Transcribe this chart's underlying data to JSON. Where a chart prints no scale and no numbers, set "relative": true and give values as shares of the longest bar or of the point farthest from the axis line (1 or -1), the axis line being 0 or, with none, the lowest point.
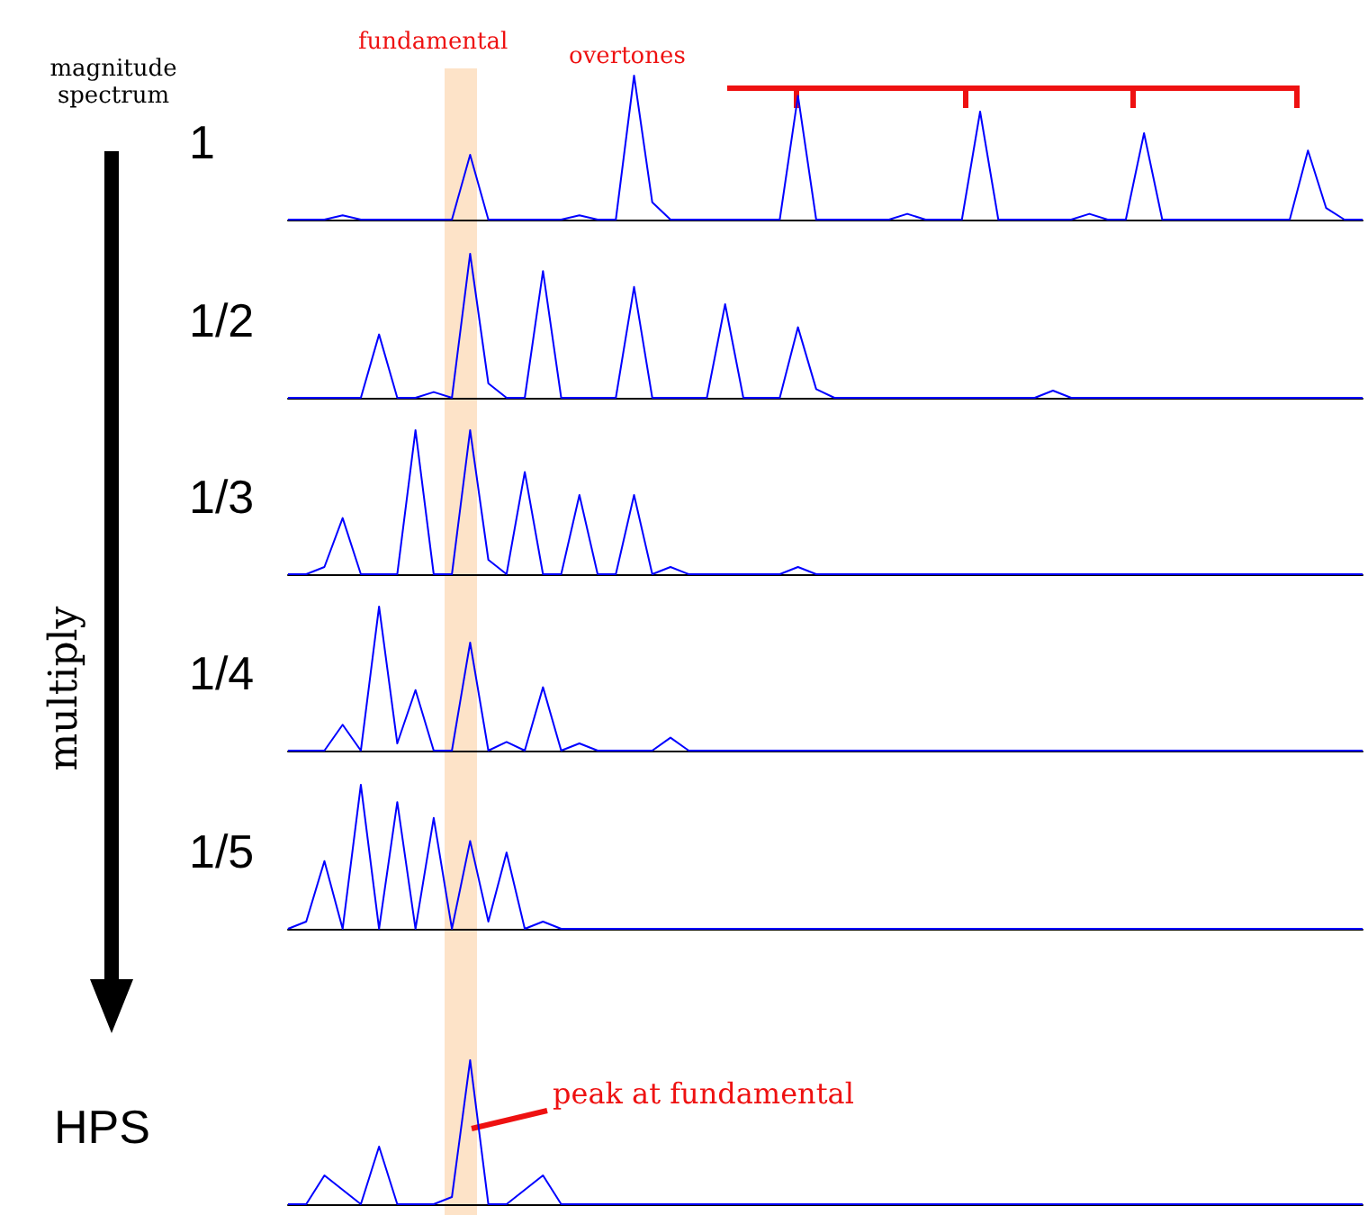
{
  "chart_data": [
    {
      "type": "line",
      "relative": true,
      "ylabel": "1",
      "color": "#0000ff",
      "annotations": [
        "magnitude spectrum",
        "multiply",
        "overtones",
        "fundamental"
      ],
      "categories": [
        null,
        null,
        null,
        null,
        null,
        null,
        null,
        null,
        null,
        null,
        null,
        null,
        null,
        null,
        null,
        null,
        null,
        null,
        null,
        null,
        null,
        null,
        null,
        null,
        null,
        null,
        null,
        null,
        null,
        null,
        null,
        null,
        null,
        null,
        null,
        null,
        null,
        null,
        null,
        null,
        null,
        null,
        null,
        null,
        null,
        null,
        null,
        null,
        null,
        null,
        null,
        null,
        null,
        null,
        null,
        null,
        null,
        null,
        null,
        null
      ],
      "values": [
        0,
        0,
        0,
        0.03,
        0,
        0,
        0,
        0,
        0,
        0,
        0.45,
        0,
        0,
        0,
        0,
        0,
        0.03,
        0,
        0,
        1,
        0.12,
        0,
        0,
        0,
        0,
        0,
        0,
        0,
        0.86,
        0,
        0,
        0,
        0,
        0,
        0.04,
        0,
        0,
        0,
        0.75,
        0,
        0,
        0,
        0,
        0,
        0.04,
        0,
        0,
        0.6,
        0,
        0,
        0,
        0,
        0,
        0,
        0,
        0,
        0.48,
        0.08,
        0,
        0
      ]
    },
    {
      "type": "line",
      "relative": true,
      "ylabel": "1/2",
      "color": "#0000ff",
      "categories": [
        null,
        null,
        null,
        null,
        null,
        null,
        null,
        null,
        null,
        null,
        null,
        null,
        null,
        null,
        null,
        null,
        null,
        null,
        null,
        null,
        null,
        null,
        null,
        null,
        null,
        null,
        null,
        null,
        null,
        null,
        null,
        null,
        null,
        null,
        null,
        null,
        null,
        null,
        null,
        null,
        null,
        null,
        null,
        null,
        null,
        null,
        null,
        null,
        null,
        null,
        null,
        null,
        null,
        null,
        null,
        null,
        null,
        null,
        null,
        null
      ],
      "values": [
        0,
        0,
        0,
        0,
        0,
        0.44,
        0,
        0,
        0.04,
        0,
        1,
        0.1,
        0,
        0,
        0.88,
        0,
        0,
        0,
        0,
        0.77,
        0,
        0,
        0,
        0,
        0.65,
        0,
        0,
        0,
        0.49,
        0.06,
        0,
        0,
        0,
        0,
        0,
        0,
        0,
        0,
        0,
        0,
        0,
        0,
        0.05,
        0,
        0,
        0,
        0,
        0,
        0,
        0,
        0,
        0,
        0,
        0,
        0,
        0,
        0,
        0,
        0,
        0
      ]
    },
    {
      "type": "line",
      "relative": true,
      "ylabel": "1/3",
      "color": "#0000ff",
      "categories": [
        null,
        null,
        null,
        null,
        null,
        null,
        null,
        null,
        null,
        null,
        null,
        null,
        null,
        null,
        null,
        null,
        null,
        null,
        null,
        null,
        null,
        null,
        null,
        null,
        null,
        null,
        null,
        null,
        null,
        null,
        null,
        null,
        null,
        null,
        null,
        null,
        null,
        null,
        null,
        null,
        null,
        null,
        null,
        null,
        null,
        null,
        null,
        null,
        null,
        null,
        null,
        null,
        null,
        null,
        null,
        null,
        null,
        null,
        null,
        null
      ],
      "values": [
        0,
        0,
        0.05,
        0.39,
        0,
        0,
        0,
        1,
        0,
        0,
        1,
        0.1,
        0,
        0.71,
        0,
        0,
        0.55,
        0,
        0,
        0.55,
        0,
        0.05,
        0,
        0,
        0,
        0,
        0,
        0,
        0.05,
        0,
        0,
        0,
        0,
        0,
        0,
        0,
        0,
        0,
        0,
        0,
        0,
        0,
        0,
        0,
        0,
        0,
        0,
        0,
        0,
        0,
        0,
        0,
        0,
        0,
        0,
        0,
        0,
        0,
        0,
        0
      ]
    },
    {
      "type": "line",
      "relative": true,
      "ylabel": "1/4",
      "color": "#0000ff",
      "categories": [
        null,
        null,
        null,
        null,
        null,
        null,
        null,
        null,
        null,
        null,
        null,
        null,
        null,
        null,
        null,
        null,
        null,
        null,
        null,
        null,
        null,
        null,
        null,
        null,
        null,
        null,
        null,
        null,
        null,
        null,
        null,
        null,
        null,
        null,
        null,
        null,
        null,
        null,
        null,
        null,
        null,
        null,
        null,
        null,
        null,
        null,
        null,
        null,
        null,
        null,
        null,
        null,
        null,
        null,
        null,
        null,
        null,
        null,
        null,
        null
      ],
      "values": [
        0,
        0,
        0,
        0.18,
        0,
        1,
        0.05,
        0.42,
        0,
        0,
        0.75,
        0,
        0.06,
        0,
        0.44,
        0,
        0.05,
        0,
        0,
        0,
        0,
        0.09,
        0,
        0,
        0,
        0,
        0,
        0,
        0,
        0,
        0,
        0,
        0,
        0,
        0,
        0,
        0,
        0,
        0,
        0,
        0,
        0,
        0,
        0,
        0,
        0,
        0,
        0,
        0,
        0,
        0,
        0,
        0,
        0,
        0,
        0,
        0,
        0,
        0,
        0
      ]
    },
    {
      "type": "line",
      "relative": true,
      "ylabel": "1/5",
      "color": "#0000ff",
      "categories": [
        null,
        null,
        null,
        null,
        null,
        null,
        null,
        null,
        null,
        null,
        null,
        null,
        null,
        null,
        null,
        null,
        null,
        null,
        null,
        null,
        null,
        null,
        null,
        null,
        null,
        null,
        null,
        null,
        null,
        null,
        null,
        null,
        null,
        null,
        null,
        null,
        null,
        null,
        null,
        null,
        null,
        null,
        null,
        null,
        null,
        null,
        null,
        null,
        null,
        null,
        null,
        null,
        null,
        null,
        null,
        null,
        null,
        null,
        null,
        null
      ],
      "values": [
        0,
        0.05,
        0.47,
        0,
        1,
        0,
        0.88,
        0,
        0.77,
        0,
        0.61,
        0.05,
        0.53,
        0,
        0.05,
        0,
        0,
        0,
        0,
        0,
        0,
        0,
        0,
        0,
        0,
        0,
        0,
        0,
        0,
        0,
        0,
        0,
        0,
        0,
        0,
        0,
        0,
        0,
        0,
        0,
        0,
        0,
        0,
        0,
        0,
        0,
        0,
        0,
        0,
        0,
        0,
        0,
        0,
        0,
        0,
        0,
        0,
        0,
        0,
        0
      ]
    },
    {
      "type": "line",
      "relative": true,
      "ylabel": "HPS",
      "color": "#0000ff",
      "annotations": [
        "peak at fundamental"
      ],
      "categories": [
        null,
        null,
        null,
        null,
        null,
        null,
        null,
        null,
        null,
        null,
        null,
        null,
        null,
        null,
        null,
        null,
        null,
        null,
        null,
        null,
        null,
        null,
        null,
        null,
        null,
        null,
        null,
        null,
        null,
        null,
        null,
        null,
        null,
        null,
        null,
        null,
        null,
        null,
        null,
        null,
        null,
        null,
        null,
        null,
        null,
        null,
        null,
        null,
        null,
        null,
        null,
        null,
        null,
        null,
        null,
        null,
        null,
        null,
        null,
        null
      ],
      "values": [
        0,
        0,
        0.2,
        0.1,
        0,
        0.4,
        0,
        0,
        0,
        0.05,
        1,
        0,
        0,
        0.1,
        0.2,
        0,
        0,
        0,
        0,
        0,
        0,
        0,
        0,
        0,
        0,
        0,
        0,
        0,
        0,
        0,
        0,
        0,
        0,
        0,
        0,
        0,
        0,
        0,
        0,
        0,
        0,
        0,
        0,
        0,
        0,
        0,
        0,
        0,
        0,
        0,
        0,
        0,
        0,
        0,
        0,
        0,
        0,
        0,
        0,
        0
      ]
    }
  ]
}
